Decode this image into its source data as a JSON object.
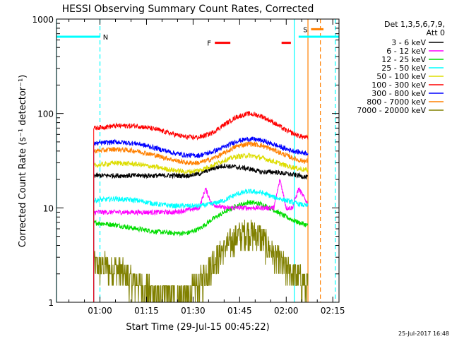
{
  "chart_data": {
    "type": "line",
    "title": "HESSI Observing Summary Count Rates, Corrected",
    "xlabel": "Start Time (29-Jul-15 00:45:22)",
    "ylabel": "Corrected Count Rate (s⁻¹ detector⁻¹)",
    "yscale": "log",
    "ylim": [
      1,
      1000
    ],
    "xlim_minutes": [
      46,
      137
    ],
    "x_tick_labels": [
      "01:00",
      "01:15",
      "01:30",
      "01:45",
      "02:00",
      "02:15"
    ],
    "x_ticks_minutes": [
      60,
      75,
      90,
      105,
      120,
      135
    ],
    "y_tick_labels": [
      "1",
      "10",
      "100",
      "1000"
    ],
    "y_ticks": [
      1,
      10,
      100,
      1000
    ],
    "legend_position": "top-right",
    "legend_header": [
      "Det 1,3,5,6,7,9,",
      "Att 0"
    ],
    "timestamp": "25-Jul-2017 16:48",
    "data_start_minute": 58,
    "data_end_minute": 127,
    "series": [
      {
        "name": "3 - 6 keV",
        "color": "#000000",
        "x": [
          58,
          65,
          72,
          78,
          84,
          88,
          92,
          96,
          100,
          104,
          108,
          112,
          116,
          120,
          124,
          127
        ],
        "y": [
          22,
          22,
          22,
          22,
          22,
          22,
          23,
          26,
          28,
          27,
          26,
          24,
          24,
          23,
          22,
          21
        ]
      },
      {
        "name": "6 - 12 keV",
        "color": "#ff00ff",
        "x": [
          58,
          65,
          72,
          78,
          84,
          88,
          92,
          94,
          96,
          100,
          104,
          108,
          112,
          116,
          118,
          120,
          122,
          124,
          127
        ],
        "y": [
          9,
          9,
          9,
          9,
          9,
          9.5,
          10,
          16,
          11,
          10,
          10,
          10,
          10,
          10,
          20,
          10,
          10,
          16,
          11
        ]
      },
      {
        "name": "12 - 25 keV",
        "color": "#00dd00",
        "x": [
          58,
          65,
          72,
          78,
          84,
          88,
          92,
          96,
          100,
          104,
          108,
          112,
          116,
          120,
          124,
          127
        ],
        "y": [
          7,
          6.6,
          6,
          5.6,
          5.4,
          5.4,
          6,
          7.5,
          9,
          10.5,
          11.5,
          11,
          9.5,
          8,
          7,
          6.5
        ]
      },
      {
        "name": "25 - 50 keV",
        "color": "#00ffff",
        "x": [
          58,
          65,
          72,
          78,
          84,
          88,
          92,
          96,
          100,
          104,
          108,
          112,
          116,
          120,
          124,
          127
        ],
        "y": [
          12,
          12.5,
          12,
          11,
          10.5,
          10.5,
          10.5,
          11,
          12,
          14,
          15,
          14.5,
          13,
          12,
          11,
          10.5
        ]
      },
      {
        "name": "50 - 100 keV",
        "color": "#dddd00",
        "x": [
          58,
          65,
          72,
          78,
          84,
          88,
          92,
          96,
          100,
          104,
          108,
          112,
          116,
          120,
          124,
          127
        ],
        "y": [
          28,
          30,
          29,
          27,
          25,
          24,
          25,
          28,
          32,
          35,
          36,
          34,
          31,
          28,
          26,
          25
        ]
      },
      {
        "name": "100 - 300 keV",
        "color": "#ff0000",
        "x": [
          58,
          65,
          72,
          78,
          84,
          88,
          92,
          96,
          100,
          104,
          108,
          112,
          116,
          120,
          124,
          127
        ],
        "y": [
          70,
          74,
          74,
          68,
          60,
          56,
          56,
          62,
          76,
          92,
          100,
          94,
          80,
          66,
          58,
          55
        ]
      },
      {
        "name": "300 - 800 keV",
        "color": "#0000ff",
        "x": [
          58,
          65,
          72,
          78,
          84,
          88,
          92,
          96,
          100,
          104,
          108,
          112,
          116,
          120,
          124,
          127
        ],
        "y": [
          48,
          50,
          48,
          43,
          38,
          36,
          36,
          39,
          44,
          51,
          54,
          52,
          47,
          42,
          39,
          38
        ]
      },
      {
        "name": "800 - 7000 keV",
        "color": "#ff8000",
        "x": [
          58,
          65,
          72,
          78,
          84,
          88,
          92,
          96,
          100,
          104,
          108,
          112,
          116,
          120,
          124,
          127
        ],
        "y": [
          40,
          42,
          40,
          36,
          32,
          30,
          30,
          33,
          38,
          45,
          48,
          46,
          41,
          36,
          32,
          31
        ]
      },
      {
        "name": "7000 - 20000 keV",
        "color": "#808000",
        "x": [
          58,
          65,
          72,
          78,
          84,
          88,
          92,
          96,
          100,
          104,
          108,
          112,
          116,
          120,
          124,
          127
        ],
        "y": [
          2.4,
          2.2,
          1.5,
          1.2,
          1.1,
          1.1,
          1.5,
          2.5,
          3.5,
          4.8,
          5.5,
          4.8,
          3,
          2.2,
          1.8,
          1.4
        ]
      }
    ],
    "annotations": [
      {
        "type": "night_bar",
        "label": "N",
        "color": "#00ffff",
        "x_start": 46,
        "x_end": 60,
        "y": 650
      },
      {
        "type": "night_bar",
        "label": "",
        "color": "#00ffff",
        "x_start": 124,
        "x_end": 137,
        "y": 650
      },
      {
        "type": "flare_bar",
        "label": "F",
        "color": "#ff0000",
        "x_start": 97,
        "x_end": 102,
        "y": 560
      },
      {
        "type": "flare_bar",
        "label": "",
        "color": "#ff0000",
        "x_start": 118.5,
        "x_end": 121.5,
        "y": 560
      },
      {
        "type": "saa_bar",
        "label": "S",
        "color": "#ff8000",
        "x_start": 128,
        "x_end": 132,
        "y": 780
      }
    ],
    "vertical_lines": [
      {
        "x": 46,
        "color": "#00ffff",
        "style": "solid"
      },
      {
        "x": 60,
        "color": "#00ffff",
        "style": "dashed"
      },
      {
        "x": 122.6,
        "color": "#00ffff",
        "style": "solid"
      },
      {
        "x": 127,
        "color": "#ff8000",
        "style": "solid"
      },
      {
        "x": 131,
        "color": "#ff8000",
        "style": "dashed"
      },
      {
        "x": 135.8,
        "color": "#00ffff",
        "style": "dashed"
      }
    ]
  }
}
